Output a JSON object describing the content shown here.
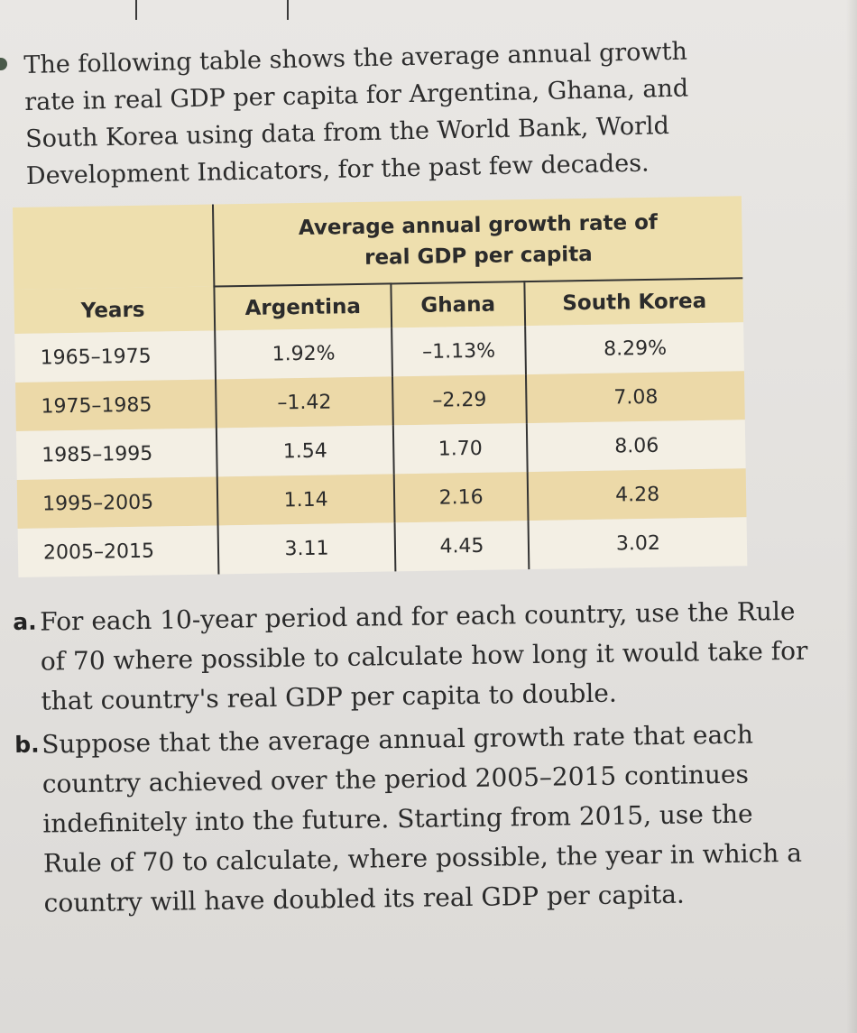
{
  "intro": {
    "lines": [
      "The following table shows the average annual growth",
      "rate in real GDP per capita for Argentina, Ghana, and",
      "South Korea using data from the World Bank, World",
      "Development Indicators, for the past few decades."
    ]
  },
  "table": {
    "group_header_line1": "Average annual growth rate of",
    "group_header_line2": "real GDP per capita",
    "columns": [
      "Years",
      "Argentina",
      "Ghana",
      "South Korea"
    ],
    "rows": [
      [
        "1965–1975",
        "1.92%",
        "–1.13%",
        "8.29%"
      ],
      [
        "1975–1985",
        "–1.42",
        "–2.29",
        "7.08"
      ],
      [
        "1985–1995",
        "1.54",
        "1.70",
        "8.06"
      ],
      [
        "1995–2005",
        "1.14",
        "2.16",
        "4.28"
      ],
      [
        "2005–2015",
        "3.11",
        "4.45",
        "3.02"
      ]
    ]
  },
  "questions": {
    "a_label": "a.",
    "a_text": "For each 10-year period and for each country, use the Rule of 70 where possible to calculate how long it would take for that country's real GDP per capita to double.",
    "b_label": "b.",
    "b_text": "Suppose that the average annual growth rate that each country achieved over the period 2005–2015 continues indefinitely into the future. Starting from 2015, use the Rule of 70 to calculate, where possible, the year in which a country will have doubled its real GDP per capita."
  },
  "colors": {
    "header_band": "#eedfae",
    "shaded_row": "#ecd9a8",
    "paper": "#e6e4e1"
  }
}
